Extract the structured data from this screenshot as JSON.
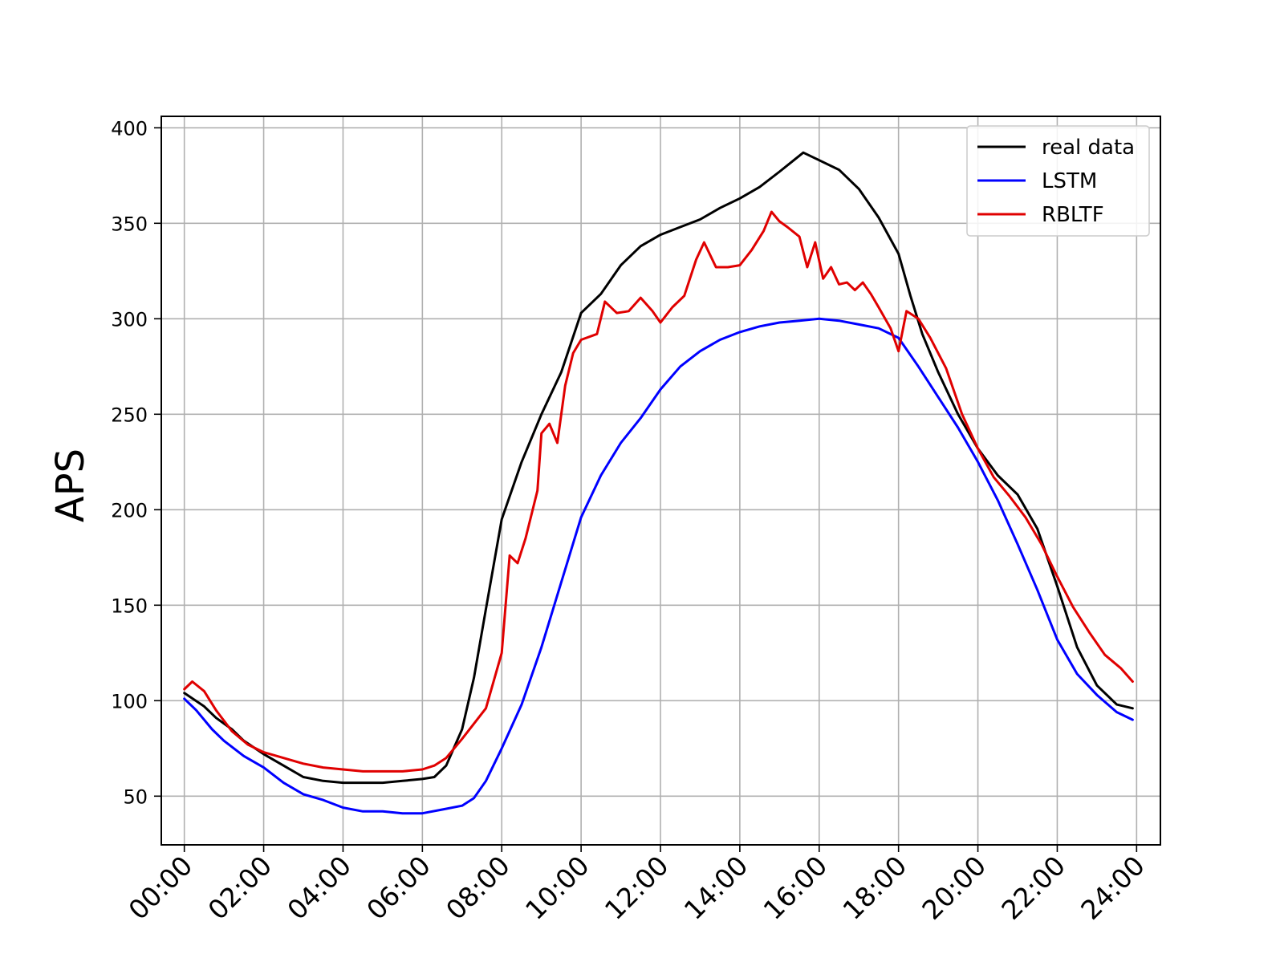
{
  "chart_data": {
    "type": "line",
    "title": "",
    "xlabel": "",
    "ylabel": "APS",
    "xlim": [
      -0.58,
      24.6
    ],
    "ylim": [
      24.5,
      406
    ],
    "grid": true,
    "legend_position": "top-right",
    "x_ticks": [
      {
        "value": 0,
        "label": "00:00"
      },
      {
        "value": 2,
        "label": "02:00"
      },
      {
        "value": 4,
        "label": "04:00"
      },
      {
        "value": 6,
        "label": "06:00"
      },
      {
        "value": 8,
        "label": "08:00"
      },
      {
        "value": 10,
        "label": "10:00"
      },
      {
        "value": 12,
        "label": "12:00"
      },
      {
        "value": 14,
        "label": "14:00"
      },
      {
        "value": 16,
        "label": "16:00"
      },
      {
        "value": 18,
        "label": "18:00"
      },
      {
        "value": 20,
        "label": "20:00"
      },
      {
        "value": 22,
        "label": "22:00"
      },
      {
        "value": 24,
        "label": "24:00"
      }
    ],
    "y_ticks": [
      {
        "value": 50,
        "label": "50"
      },
      {
        "value": 100,
        "label": "100"
      },
      {
        "value": 150,
        "label": "150"
      },
      {
        "value": 200,
        "label": "200"
      },
      {
        "value": 250,
        "label": "250"
      },
      {
        "value": 300,
        "label": "300"
      },
      {
        "value": 350,
        "label": "350"
      },
      {
        "value": 400,
        "label": "400"
      }
    ],
    "series": [
      {
        "name": "real data",
        "color": "#000000",
        "points": [
          [
            0,
            104
          ],
          [
            0.5,
            97
          ],
          [
            0.8,
            91
          ],
          [
            1.2,
            85
          ],
          [
            1.5,
            79
          ],
          [
            2,
            72
          ],
          [
            2.5,
            66
          ],
          [
            3,
            60
          ],
          [
            3.5,
            58
          ],
          [
            4,
            57
          ],
          [
            4.5,
            57
          ],
          [
            5,
            57
          ],
          [
            5.5,
            58
          ],
          [
            6,
            59
          ],
          [
            6.3,
            60
          ],
          [
            6.6,
            66
          ],
          [
            7,
            85
          ],
          [
            7.3,
            112
          ],
          [
            7.6,
            148
          ],
          [
            8,
            195
          ],
          [
            8.5,
            225
          ],
          [
            9,
            250
          ],
          [
            9.5,
            272
          ],
          [
            10,
            303
          ],
          [
            10.5,
            313
          ],
          [
            11,
            328
          ],
          [
            11.5,
            338
          ],
          [
            12,
            344
          ],
          [
            12.5,
            348
          ],
          [
            13,
            352
          ],
          [
            13.5,
            358
          ],
          [
            14,
            363
          ],
          [
            14.5,
            369
          ],
          [
            15,
            377
          ],
          [
            15.3,
            382
          ],
          [
            15.6,
            387
          ],
          [
            16,
            383
          ],
          [
            16.5,
            378
          ],
          [
            17,
            368
          ],
          [
            17.5,
            353
          ],
          [
            18,
            334
          ],
          [
            18.3,
            312
          ],
          [
            18.6,
            292
          ],
          [
            19,
            272
          ],
          [
            19.5,
            250
          ],
          [
            20,
            232
          ],
          [
            20.5,
            218
          ],
          [
            21,
            208
          ],
          [
            21.5,
            190
          ],
          [
            22,
            160
          ],
          [
            22.5,
            128
          ],
          [
            23,
            108
          ],
          [
            23.5,
            98
          ],
          [
            23.9,
            96
          ]
        ]
      },
      {
        "name": "LSTM",
        "color": "#0000ff",
        "points": [
          [
            0,
            101
          ],
          [
            0.3,
            95
          ],
          [
            0.7,
            85
          ],
          [
            1,
            79
          ],
          [
            1.5,
            71
          ],
          [
            2,
            65
          ],
          [
            2.5,
            57
          ],
          [
            3,
            51
          ],
          [
            3.5,
            48
          ],
          [
            4,
            44
          ],
          [
            4.5,
            42
          ],
          [
            5,
            42
          ],
          [
            5.5,
            41
          ],
          [
            6,
            41
          ],
          [
            6.5,
            43
          ],
          [
            7,
            45
          ],
          [
            7.3,
            49
          ],
          [
            7.6,
            58
          ],
          [
            8,
            75
          ],
          [
            8.5,
            98
          ],
          [
            9,
            128
          ],
          [
            9.5,
            162
          ],
          [
            10,
            196
          ],
          [
            10.5,
            218
          ],
          [
            11,
            235
          ],
          [
            11.5,
            248
          ],
          [
            12,
            263
          ],
          [
            12.5,
            275
          ],
          [
            13,
            283
          ],
          [
            13.5,
            289
          ],
          [
            14,
            293
          ],
          [
            14.5,
            296
          ],
          [
            15,
            298
          ],
          [
            15.5,
            299
          ],
          [
            16,
            300
          ],
          [
            16.5,
            299
          ],
          [
            17,
            297
          ],
          [
            17.5,
            295
          ],
          [
            18,
            290
          ],
          [
            18.5,
            275
          ],
          [
            19,
            259
          ],
          [
            19.5,
            243
          ],
          [
            20,
            225
          ],
          [
            20.5,
            205
          ],
          [
            21,
            182
          ],
          [
            21.5,
            158
          ],
          [
            22,
            132
          ],
          [
            22.5,
            114
          ],
          [
            23,
            103
          ],
          [
            23.5,
            94
          ],
          [
            23.9,
            90
          ]
        ]
      },
      {
        "name": "RBLTF",
        "color": "#e00000",
        "points": [
          [
            0,
            106
          ],
          [
            0.2,
            110
          ],
          [
            0.5,
            105
          ],
          [
            0.8,
            95
          ],
          [
            1.2,
            84
          ],
          [
            1.6,
            77
          ],
          [
            2,
            73
          ],
          [
            2.5,
            70
          ],
          [
            3,
            67
          ],
          [
            3.5,
            65
          ],
          [
            4,
            64
          ],
          [
            4.5,
            63
          ],
          [
            5,
            63
          ],
          [
            5.5,
            63
          ],
          [
            6,
            64
          ],
          [
            6.3,
            66
          ],
          [
            6.6,
            70
          ],
          [
            7,
            80
          ],
          [
            7.3,
            88
          ],
          [
            7.6,
            96
          ],
          [
            8,
            125
          ],
          [
            8.2,
            176
          ],
          [
            8.4,
            172
          ],
          [
            8.6,
            185
          ],
          [
            8.9,
            210
          ],
          [
            9,
            240
          ],
          [
            9.2,
            245
          ],
          [
            9.4,
            235
          ],
          [
            9.6,
            265
          ],
          [
            9.8,
            282
          ],
          [
            10,
            289
          ],
          [
            10.4,
            292
          ],
          [
            10.6,
            309
          ],
          [
            10.9,
            303
          ],
          [
            11.2,
            304
          ],
          [
            11.5,
            311
          ],
          [
            11.8,
            304
          ],
          [
            12,
            298
          ],
          [
            12.3,
            306
          ],
          [
            12.6,
            312
          ],
          [
            12.9,
            331
          ],
          [
            13.1,
            340
          ],
          [
            13.4,
            327
          ],
          [
            13.7,
            327
          ],
          [
            14,
            328
          ],
          [
            14.3,
            336
          ],
          [
            14.6,
            346
          ],
          [
            14.8,
            356
          ],
          [
            15,
            351
          ],
          [
            15.2,
            348
          ],
          [
            15.5,
            343
          ],
          [
            15.7,
            327
          ],
          [
            15.9,
            340
          ],
          [
            16.1,
            321
          ],
          [
            16.3,
            327
          ],
          [
            16.5,
            318
          ],
          [
            16.7,
            319
          ],
          [
            16.9,
            315
          ],
          [
            17.1,
            319
          ],
          [
            17.3,
            313
          ],
          [
            17.5,
            306
          ],
          [
            17.8,
            295
          ],
          [
            18,
            283
          ],
          [
            18.2,
            304
          ],
          [
            18.5,
            300
          ],
          [
            18.8,
            290
          ],
          [
            19.2,
            274
          ],
          [
            19.6,
            250
          ],
          [
            20,
            232
          ],
          [
            20.4,
            217
          ],
          [
            20.8,
            207
          ],
          [
            21.2,
            196
          ],
          [
            21.6,
            182
          ],
          [
            22,
            165
          ],
          [
            22.4,
            149
          ],
          [
            22.8,
            136
          ],
          [
            23.2,
            124
          ],
          [
            23.6,
            117
          ],
          [
            23.9,
            110
          ]
        ]
      }
    ]
  }
}
